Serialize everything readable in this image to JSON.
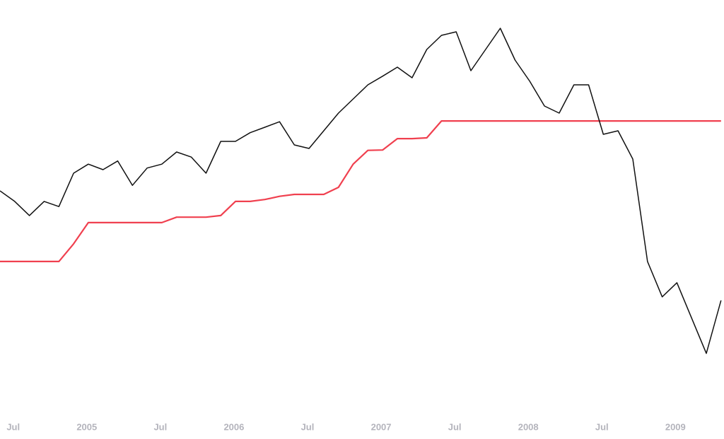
{
  "chart_data": {
    "type": "line",
    "x": [
      2004.41,
      2004.51,
      2004.61,
      2004.71,
      2004.81,
      2004.91,
      2005.01,
      2005.11,
      2005.21,
      2005.31,
      2005.41,
      2005.51,
      2005.61,
      2005.71,
      2005.81,
      2005.91,
      2006.01,
      2006.11,
      2006.21,
      2006.31,
      2006.41,
      2006.51,
      2006.61,
      2006.71,
      2006.81,
      2006.91,
      2007.01,
      2007.11,
      2007.21,
      2007.31,
      2007.41,
      2007.51,
      2007.61,
      2007.71,
      2007.81,
      2007.91,
      2008.01,
      2008.11,
      2008.21,
      2008.31,
      2008.41,
      2008.51,
      2008.61,
      2008.71,
      2008.81,
      2008.91,
      2009.01,
      2009.11,
      2009.21,
      2009.31
    ],
    "series": [
      {
        "color": "#111111",
        "values": [
          1132,
          1105,
          1069,
          1105,
          1092,
          1177,
          1200,
          1186,
          1208,
          1146,
          1190,
          1200,
          1231,
          1218,
          1177,
          1258,
          1258,
          1280,
          1294,
          1308,
          1249,
          1240,
          1285,
          1330,
          1366,
          1402,
          1424,
          1447,
          1420,
          1492,
          1528,
          1537,
          1438,
          1492,
          1546,
          1465,
          1411,
          1348,
          1330,
          1402,
          1402,
          1276,
          1285,
          1213,
          952,
          862,
          898,
          808,
          718,
          853
        ]
      },
      {
        "color": "#f0404f",
        "values": [
          952,
          952,
          952,
          952,
          952,
          997,
          1051,
          1051,
          1051,
          1051,
          1051,
          1051,
          1065,
          1065,
          1065,
          1069,
          1105,
          1105,
          1110,
          1118,
          1123,
          1123,
          1123,
          1141,
          1200,
          1235,
          1236,
          1265,
          1265,
          1267,
          1310,
          1310,
          1310,
          1310,
          1310,
          1310,
          1310,
          1310,
          1310,
          1310,
          1310,
          1310,
          1310,
          1310,
          1310,
          1310,
          1310,
          1310,
          1310,
          1310
        ]
      }
    ],
    "xlim": [
      2004.41,
      2009.33
    ],
    "ylim": [
      500,
      1618
    ],
    "xticks": [
      {
        "value": 2004.5,
        "label": "Jul"
      },
      2005,
      {
        "value": 2005.5,
        "label": "Jul"
      },
      2006,
      {
        "value": 2006.5,
        "label": "Jul"
      },
      2007,
      {
        "value": 2007.5,
        "label": "Jul"
      },
      2008,
      {
        "value": 2008.5,
        "label": "Jul"
      },
      2009
    ]
  }
}
